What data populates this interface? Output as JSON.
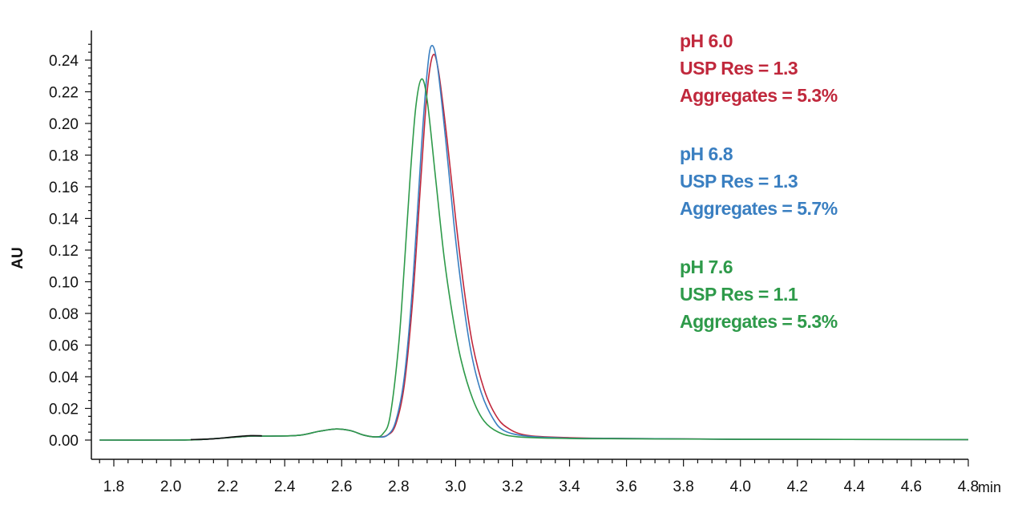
{
  "chart_data": {
    "type": "line",
    "xlabel": "min",
    "ylabel": "AU",
    "xlim": [
      1.75,
      4.8
    ],
    "ylim": [
      0,
      0.25
    ],
    "x_ticks": [
      "1.8",
      "2.0",
      "2.2",
      "2.4",
      "2.6",
      "2.8",
      "3.0",
      "3.2",
      "3.4",
      "3.6",
      "3.8",
      "4.0",
      "4.2",
      "4.4",
      "4.6",
      "4.8"
    ],
    "y_ticks": [
      "0.00",
      "0.02",
      "0.04",
      "0.06",
      "0.08",
      "0.10",
      "0.12",
      "0.14",
      "0.16",
      "0.18",
      "0.20",
      "0.22",
      "0.24"
    ],
    "grid": false,
    "series": [
      {
        "color": "#c0283c",
        "points": [
          [
            1.75,
            0
          ],
          [
            2.0,
            0
          ],
          [
            2.1,
            0.0003
          ],
          [
            2.2,
            0.0015
          ],
          [
            2.28,
            0.0025
          ],
          [
            2.35,
            0.0025
          ],
          [
            2.45,
            0.003
          ],
          [
            2.52,
            0.0055
          ],
          [
            2.58,
            0.007
          ],
          [
            2.63,
            0.006
          ],
          [
            2.68,
            0.003
          ],
          [
            2.72,
            0.002
          ],
          [
            2.76,
            0.003
          ],
          [
            2.79,
            0.01
          ],
          [
            2.82,
            0.035
          ],
          [
            2.85,
            0.09
          ],
          [
            2.88,
            0.17
          ],
          [
            2.9,
            0.22
          ],
          [
            2.92,
            0.243
          ],
          [
            2.94,
            0.233
          ],
          [
            2.97,
            0.19
          ],
          [
            3.0,
            0.14
          ],
          [
            3.03,
            0.095
          ],
          [
            3.06,
            0.06
          ],
          [
            3.1,
            0.032
          ],
          [
            3.14,
            0.016
          ],
          [
            3.18,
            0.008
          ],
          [
            3.25,
            0.003
          ],
          [
            3.4,
            0.0015
          ],
          [
            3.6,
            0.001
          ],
          [
            4.0,
            0.0005
          ],
          [
            4.8,
            0.0003
          ]
        ]
      },
      {
        "color": "#3a7fc1",
        "points": [
          [
            1.75,
            0
          ],
          [
            2.0,
            0
          ],
          [
            2.1,
            0.0003
          ],
          [
            2.2,
            0.0015
          ],
          [
            2.28,
            0.0025
          ],
          [
            2.35,
            0.0025
          ],
          [
            2.45,
            0.003
          ],
          [
            2.52,
            0.0055
          ],
          [
            2.58,
            0.007
          ],
          [
            2.63,
            0.006
          ],
          [
            2.68,
            0.003
          ],
          [
            2.72,
            0.002
          ],
          [
            2.76,
            0.003
          ],
          [
            2.79,
            0.012
          ],
          [
            2.82,
            0.04
          ],
          [
            2.85,
            0.1
          ],
          [
            2.88,
            0.185
          ],
          [
            2.9,
            0.232
          ],
          [
            2.915,
            0.249
          ],
          [
            2.935,
            0.238
          ],
          [
            2.965,
            0.19
          ],
          [
            2.995,
            0.135
          ],
          [
            3.025,
            0.09
          ],
          [
            3.055,
            0.055
          ],
          [
            3.09,
            0.03
          ],
          [
            3.13,
            0.014
          ],
          [
            3.17,
            0.006
          ],
          [
            3.25,
            0.0025
          ],
          [
            3.4,
            0.0012
          ],
          [
            3.6,
            0.001
          ],
          [
            4.0,
            0.0005
          ],
          [
            4.8,
            0.0003
          ]
        ]
      },
      {
        "color": "#2e9a4a",
        "points": [
          [
            1.75,
            0
          ],
          [
            2.0,
            0
          ],
          [
            2.1,
            0.0003
          ],
          [
            2.2,
            0.0015
          ],
          [
            2.28,
            0.0025
          ],
          [
            2.35,
            0.0025
          ],
          [
            2.45,
            0.003
          ],
          [
            2.52,
            0.0055
          ],
          [
            2.58,
            0.007
          ],
          [
            2.63,
            0.006
          ],
          [
            2.68,
            0.003
          ],
          [
            2.72,
            0.002
          ],
          [
            2.745,
            0.004
          ],
          [
            2.77,
            0.015
          ],
          [
            2.8,
            0.06
          ],
          [
            2.82,
            0.11
          ],
          [
            2.84,
            0.165
          ],
          [
            2.86,
            0.21
          ],
          [
            2.88,
            0.228
          ],
          [
            2.9,
            0.215
          ],
          [
            2.93,
            0.165
          ],
          [
            2.96,
            0.115
          ],
          [
            2.99,
            0.078
          ],
          [
            3.02,
            0.05
          ],
          [
            3.06,
            0.026
          ],
          [
            3.1,
            0.012
          ],
          [
            3.15,
            0.005
          ],
          [
            3.22,
            0.002
          ],
          [
            3.4,
            0.001
          ],
          [
            3.6,
            0.0008
          ],
          [
            4.0,
            0.0005
          ],
          [
            4.8,
            0.0003
          ]
        ]
      },
      {
        "color": "#111111",
        "points": [
          [
            2.07,
            0.0003
          ],
          [
            2.15,
            0.0008
          ],
          [
            2.22,
            0.002
          ],
          [
            2.28,
            0.0028
          ],
          [
            2.32,
            0.0027
          ]
        ]
      }
    ],
    "annotations": [
      {
        "color": "#c0283c",
        "lines": [
          "pH 6.0",
          "USP Res = 1.3",
          "Aggregates = 5.3%"
        ]
      },
      {
        "color": "#3a7fc1",
        "lines": [
          "pH 6.8",
          "USP Res = 1.3",
          "Aggregates = 5.7%"
        ]
      },
      {
        "color": "#2e9a4a",
        "lines": [
          "pH 7.6",
          "USP Res = 1.1",
          "Aggregates = 5.3%"
        ]
      }
    ]
  }
}
